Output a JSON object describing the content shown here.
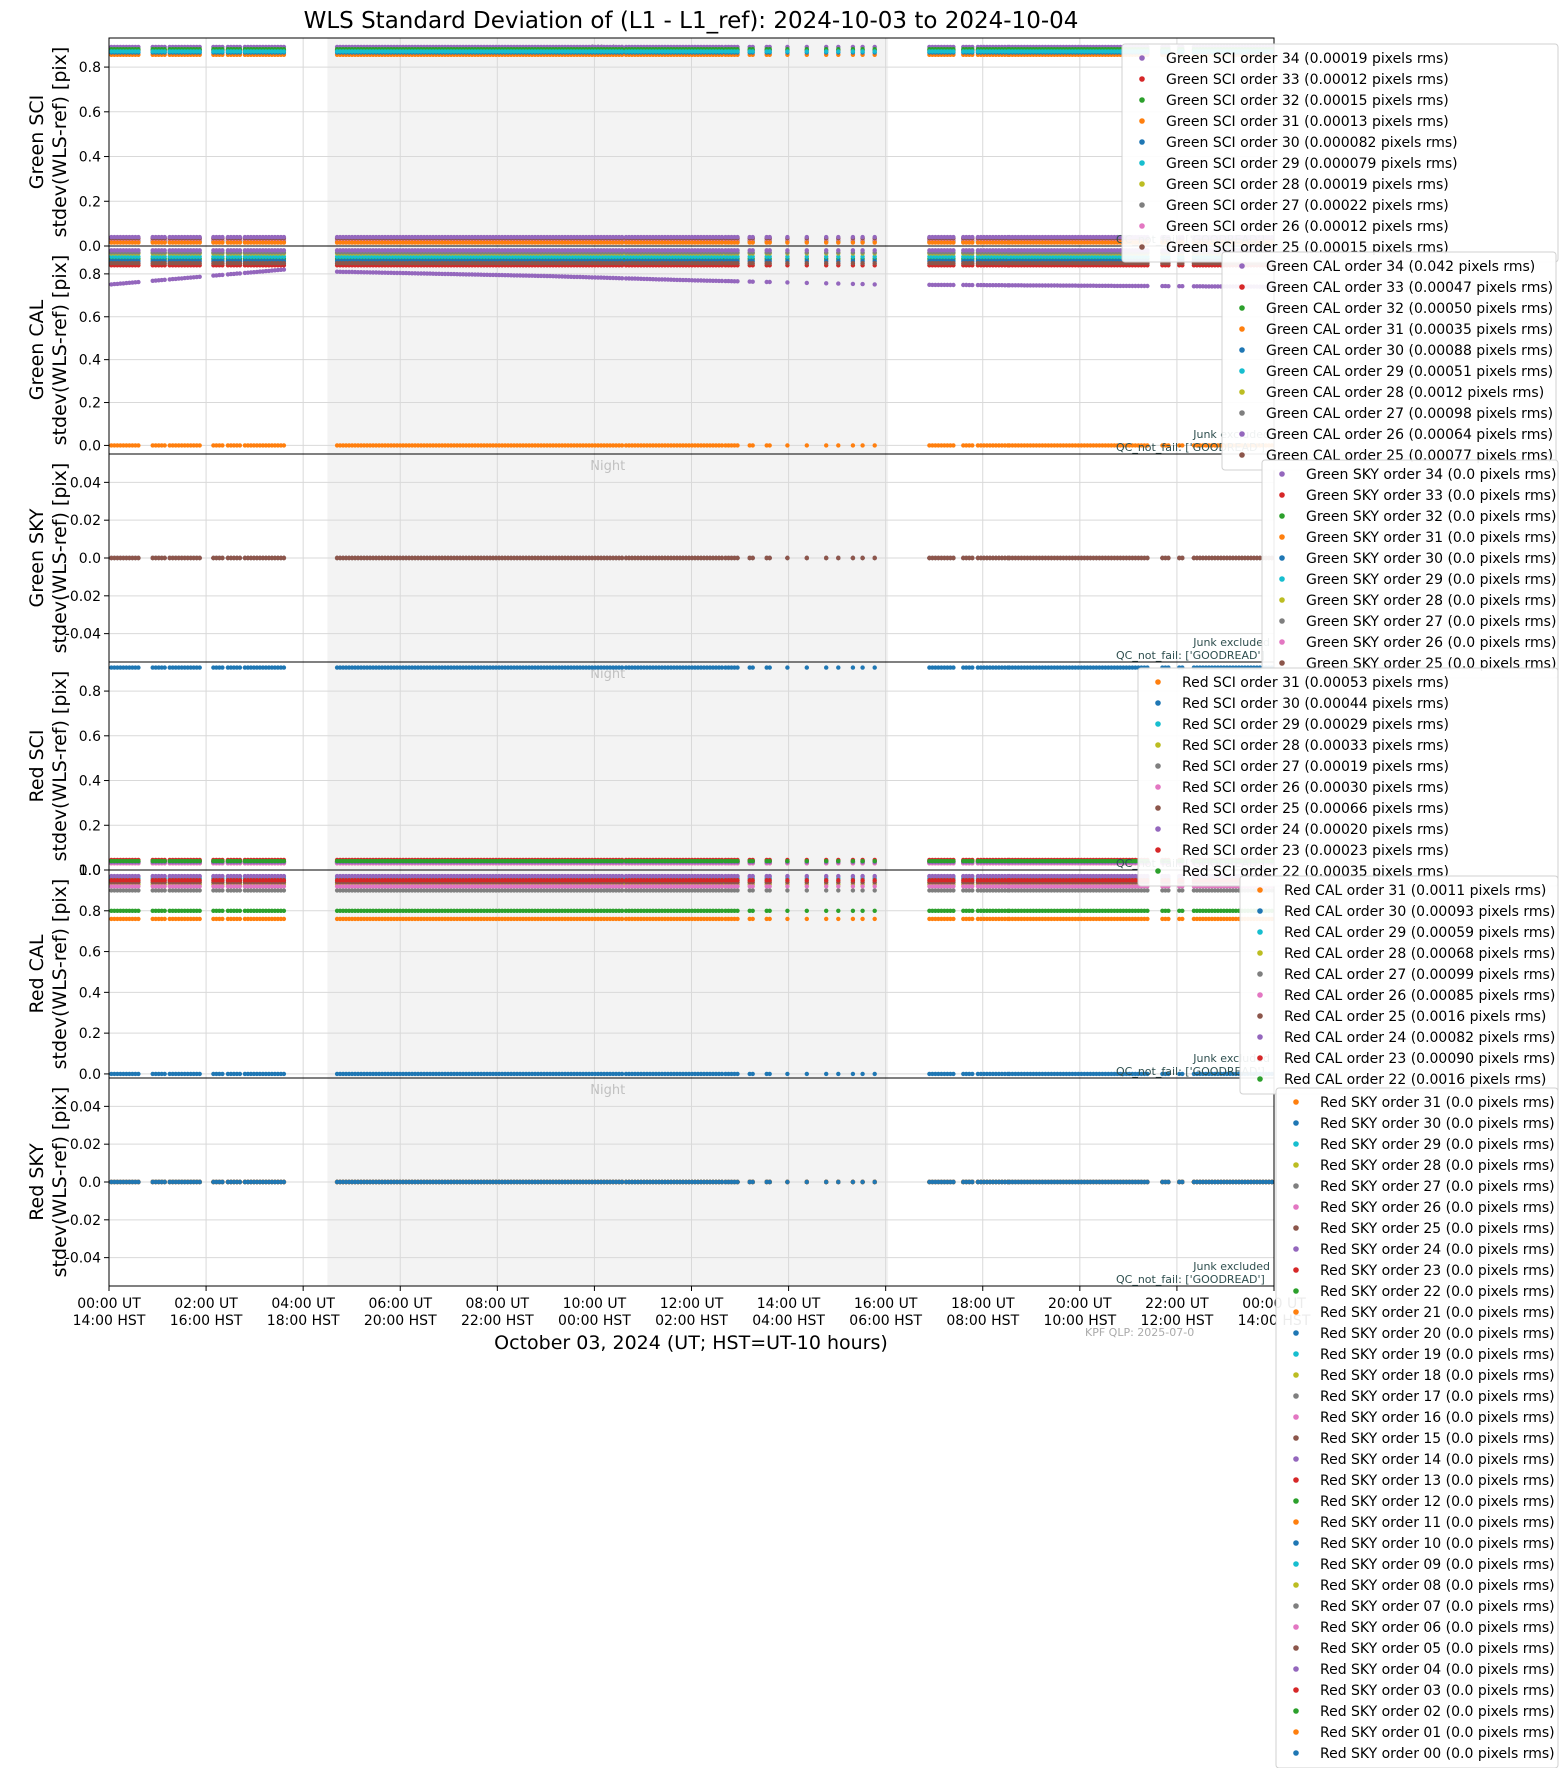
{
  "title": "WLS Standard Deviation of (L1 - L1_ref): 2024-10-03 to 2024-10-04",
  "xlabel": "October 03, 2024 (UT; HST=UT-10 hours)",
  "x_ticks": [
    {
      "ut": "00:00 UT",
      "hst": "14:00 HST"
    },
    {
      "ut": "02:00 UT",
      "hst": "16:00 HST"
    },
    {
      "ut": "04:00 UT",
      "hst": "18:00 HST"
    },
    {
      "ut": "06:00 UT",
      "hst": "20:00 HST"
    },
    {
      "ut": "08:00 UT",
      "hst": "22:00 HST"
    },
    {
      "ut": "10:00 UT",
      "hst": "00:00 HST"
    },
    {
      "ut": "12:00 UT",
      "hst": "02:00 HST"
    },
    {
      "ut": "14:00 UT",
      "hst": "04:00 HST"
    },
    {
      "ut": "16:00 UT",
      "hst": "06:00 HST"
    },
    {
      "ut": "18:00 UT",
      "hst": "08:00 HST"
    },
    {
      "ut": "20:00 UT",
      "hst": "10:00 HST"
    },
    {
      "ut": "22:00 UT",
      "hst": "12:00 HST"
    },
    {
      "ut": "00:00 UT",
      "hst": "14:00 HST"
    }
  ],
  "footer_text": "KPF QLP: 2025-07-0",
  "night_label": "Night",
  "junk_text": "Junk excluded",
  "qc_text": "QC_not_fail: ['GOODREAD']",
  "colors": {
    "palette": [
      "#1f77b4",
      "#ff7f0e",
      "#2ca02c",
      "#d62728",
      "#9467bd",
      "#8c564b",
      "#e377c2",
      "#7f7f7f",
      "#bcbd22",
      "#17becf"
    ],
    "night_band": "#f3f3f3",
    "grid": "#d9d9d9"
  },
  "chart_data": {
    "type": "scatter",
    "x_unit": "hours UT since 2024-10-03 00:00",
    "xlim": [
      0,
      24
    ],
    "night_span": [
      4.5,
      16.05
    ],
    "observation_windows": [
      [
        0.05,
        0.62
      ],
      [
        0.9,
        1.15
      ],
      [
        1.25,
        1.9
      ],
      [
        2.15,
        2.35
      ],
      [
        2.45,
        2.72
      ],
      [
        2.8,
        3.65
      ],
      [
        4.7,
        10.6
      ],
      [
        10.65,
        12.65
      ],
      [
        12.7,
        12.95
      ],
      [
        13.2,
        13.3
      ],
      [
        13.55,
        13.65
      ],
      [
        13.95,
        14.0
      ],
      [
        14.35,
        14.4
      ],
      [
        14.75,
        14.8
      ],
      [
        15.0,
        15.05
      ],
      [
        15.3,
        15.35
      ],
      [
        15.5,
        15.55
      ],
      [
        15.75,
        15.8
      ],
      [
        16.9,
        17.45
      ],
      [
        17.6,
        17.8
      ],
      [
        17.9,
        18.55
      ],
      [
        18.55,
        21.45
      ],
      [
        21.7,
        21.85
      ],
      [
        22.05,
        22.15
      ],
      [
        22.35,
        24.0
      ]
    ],
    "panels": [
      {
        "ylabel_top": "Green SCI",
        "ylabel_bottom": "stdev(WLS-ref) [pix]",
        "ylim": [
          0,
          0.93
        ],
        "yticks": [
          0.0,
          0.2,
          0.4,
          0.6,
          0.8
        ],
        "series": [
          {
            "name": "Green SCI order 34 (0.00019 pixels rms)",
            "color": "#9467bd",
            "value": 0.89
          },
          {
            "name": "Green SCI order 33 (0.00012 pixels rms)",
            "color": "#d62728",
            "value": 0.875
          },
          {
            "name": "Green SCI order 32 (0.00015 pixels rms)",
            "color": "#2ca02c",
            "value": 0.88
          },
          {
            "name": "Green SCI order 31 (0.00013 pixels rms)",
            "color": "#ff7f0e",
            "value": 0.855
          },
          {
            "name": "Green SCI order 30 (0.000082 pixels rms)",
            "color": "#1f77b4",
            "value": 0.865
          },
          {
            "name": "Green SCI order 29 (0.000079 pixels rms)",
            "color": "#17becf",
            "value": 0.87
          },
          {
            "name": "Green SCI order 28 (0.00019 pixels rms)",
            "color": "#bcbd22",
            "value": 0.02
          },
          {
            "name": "Green SCI order 27 (0.00022 pixels rms)",
            "color": "#7f7f7f",
            "value": 0.025
          },
          {
            "name": "Green SCI order 26 (0.00012 pixels rms)",
            "color": "#e377c2",
            "value": 0.03
          },
          {
            "name": "Green SCI order 25 (0.00015 pixels rms)",
            "color": "#8c564b",
            "value": 0.035
          }
        ],
        "extra_values": [
          {
            "color": "#9467bd",
            "value": 0.04
          },
          {
            "color": "#ff7f0e",
            "value": 0.015
          }
        ],
        "show_junk": false
      },
      {
        "ylabel_top": "Green CAL",
        "ylabel_bottom": "stdev(WLS-ref) [pix]",
        "ylim": [
          -0.04,
          0.93
        ],
        "yticks": [
          0.0,
          0.2,
          0.4,
          0.6,
          0.8
        ],
        "series": [
          {
            "name": "Green CAL order 34 (0.042 pixels rms)",
            "color": "#9467bd",
            "value": 0.8,
            "trend": [
              [
                0,
                0.75
              ],
              [
                3.6,
                0.82
              ],
              [
                4.7,
                0.81
              ],
              [
                9,
                0.79
              ],
              [
                12,
                0.77
              ],
              [
                16,
                0.75
              ],
              [
                24,
                0.74
              ]
            ]
          },
          {
            "name": "Green CAL order 33 (0.00047 pixels rms)",
            "color": "#d62728",
            "value": 0.84
          },
          {
            "name": "Green CAL order 32 (0.00050 pixels rms)",
            "color": "#2ca02c",
            "value": 0.87
          },
          {
            "name": "Green CAL order 31 (0.00035 pixels rms)",
            "color": "#ff7f0e",
            "value": 0.0
          },
          {
            "name": "Green CAL order 30 (0.00088 pixels rms)",
            "color": "#1f77b4",
            "value": 0.86
          },
          {
            "name": "Green CAL order 29 (0.00051 pixels rms)",
            "color": "#17becf",
            "value": 0.88
          },
          {
            "name": "Green CAL order 28 (0.0012 pixels rms)",
            "color": "#bcbd22",
            "value": 0.895
          },
          {
            "name": "Green CAL order 27 (0.00098 pixels rms)",
            "color": "#7f7f7f",
            "value": 0.9
          },
          {
            "name": "Green CAL order 26 (0.00064 pixels rms)",
            "color": "#9467bd",
            "value": 0.91
          },
          {
            "name": "Green CAL order 25 (0.00077 pixels rms)",
            "color": "#8c564b",
            "value": 0.85
          }
        ],
        "show_junk": true
      },
      {
        "ylabel_top": "Green SKY",
        "ylabel_bottom": "stdev(WLS-ref) [pix]",
        "ylim": [
          -0.055,
          0.055
        ],
        "yticks": [
          -0.04,
          -0.02,
          0.0,
          0.02,
          0.04
        ],
        "series": [
          {
            "name": "Green SKY order 34 (0.0 pixels rms)",
            "color": "#9467bd",
            "value": 0.0
          },
          {
            "name": "Green SKY order 33 (0.0 pixels rms)",
            "color": "#d62728",
            "value": 0.0
          },
          {
            "name": "Green SKY order 32 (0.0 pixels rms)",
            "color": "#2ca02c",
            "value": 0.0
          },
          {
            "name": "Green SKY order 31 (0.0 pixels rms)",
            "color": "#ff7f0e",
            "value": 0.0
          },
          {
            "name": "Green SKY order 30 (0.0 pixels rms)",
            "color": "#1f77b4",
            "value": 0.0
          },
          {
            "name": "Green SKY order 29 (0.0 pixels rms)",
            "color": "#17becf",
            "value": 0.0
          },
          {
            "name": "Green SKY order 28 (0.0 pixels rms)",
            "color": "#bcbd22",
            "value": 0.0
          },
          {
            "name": "Green SKY order 27 (0.0 pixels rms)",
            "color": "#7f7f7f",
            "value": 0.0
          },
          {
            "name": "Green SKY order 26 (0.0 pixels rms)",
            "color": "#e377c2",
            "value": 0.0
          },
          {
            "name": "Green SKY order 25 (0.0 pixels rms)",
            "color": "#8c564b",
            "value": 0.0
          }
        ],
        "show_junk": true
      },
      {
        "ylabel_top": "Red SCI",
        "ylabel_bottom": "stdev(WLS-ref) [pix]",
        "ylim": [
          0,
          0.93
        ],
        "yticks": [
          0.0,
          0.2,
          0.4,
          0.6,
          0.8
        ],
        "series": [
          {
            "name": "Red SCI order 31 (0.00053 pixels rms)",
            "color": "#ff7f0e",
            "value": 0.03
          },
          {
            "name": "Red SCI order 30 (0.00044 pixels rms)",
            "color": "#1f77b4",
            "value": 0.905
          },
          {
            "name": "Red SCI order 29 (0.00029 pixels rms)",
            "color": "#17becf",
            "value": 0.035
          },
          {
            "name": "Red SCI order 28 (0.00033 pixels rms)",
            "color": "#bcbd22",
            "value": 0.04
          },
          {
            "name": "Red SCI order 27 (0.00019 pixels rms)",
            "color": "#7f7f7f",
            "value": 0.035
          },
          {
            "name": "Red SCI order 26 (0.00030 pixels rms)",
            "color": "#e377c2",
            "value": 0.03
          },
          {
            "name": "Red SCI order 25 (0.00066 pixels rms)",
            "color": "#8c564b",
            "value": 0.04
          },
          {
            "name": "Red SCI order 24 (0.00020 pixels rms)",
            "color": "#9467bd",
            "value": 0.035
          },
          {
            "name": "Red SCI order 23 (0.00023 pixels rms)",
            "color": "#d62728",
            "value": 0.045
          },
          {
            "name": "Red SCI order 22 (0.00035 pixels rms)",
            "color": "#2ca02c",
            "value": 0.04
          }
        ],
        "show_junk": false
      },
      {
        "ylabel_top": "Red CAL",
        "ylabel_bottom": "stdev(WLS-ref) [pix]",
        "ylim": [
          -0.02,
          1.0
        ],
        "yticks": [
          0.0,
          0.2,
          0.4,
          0.6,
          0.8,
          1.0
        ],
        "series": [
          {
            "name": "Red CAL order 31 (0.0011 pixels rms)",
            "color": "#ff7f0e",
            "value": 0.76
          },
          {
            "name": "Red CAL order 30 (0.00093 pixels rms)",
            "color": "#1f77b4",
            "value": 0.0
          },
          {
            "name": "Red CAL order 29 (0.00059 pixels rms)",
            "color": "#17becf",
            "value": 0.96
          },
          {
            "name": "Red CAL order 28 (0.00068 pixels rms)",
            "color": "#bcbd22",
            "value": 0.93
          },
          {
            "name": "Red CAL order 27 (0.00099 pixels rms)",
            "color": "#7f7f7f",
            "value": 0.9
          },
          {
            "name": "Red CAL order 26 (0.00085 pixels rms)",
            "color": "#e377c2",
            "value": 0.92
          },
          {
            "name": "Red CAL order 25 (0.0016 pixels rms)",
            "color": "#8c564b",
            "value": 0.94
          },
          {
            "name": "Red CAL order 24 (0.00082 pixels rms)",
            "color": "#9467bd",
            "value": 0.97
          },
          {
            "name": "Red CAL order 23 (0.00090 pixels rms)",
            "color": "#d62728",
            "value": 0.95
          },
          {
            "name": "Red CAL order 22 (0.0016 pixels rms)",
            "color": "#2ca02c",
            "value": 0.8
          }
        ],
        "show_junk": true
      },
      {
        "ylabel_top": "Red SKY",
        "ylabel_bottom": "stdev(WLS-ref) [pix]",
        "ylim": [
          -0.055,
          0.055
        ],
        "yticks": [
          -0.04,
          -0.02,
          0.0,
          0.02,
          0.04
        ],
        "series": [
          {
            "name": "Red SKY order 31 (0.0 pixels rms)",
            "color": "#ff7f0e",
            "value": 0.0
          },
          {
            "name": "Red SKY order 30 (0.0 pixels rms)",
            "color": "#1f77b4",
            "value": 0.0
          },
          {
            "name": "Red SKY order 29 (0.0 pixels rms)",
            "color": "#17becf",
            "value": 0.0
          },
          {
            "name": "Red SKY order 28 (0.0 pixels rms)",
            "color": "#bcbd22",
            "value": 0.0
          },
          {
            "name": "Red SKY order 27 (0.0 pixels rms)",
            "color": "#7f7f7f",
            "value": 0.0
          },
          {
            "name": "Red SKY order 26 (0.0 pixels rms)",
            "color": "#e377c2",
            "value": 0.0
          },
          {
            "name": "Red SKY order 25 (0.0 pixels rms)",
            "color": "#8c564b",
            "value": 0.0
          },
          {
            "name": "Red SKY order 24 (0.0 pixels rms)",
            "color": "#9467bd",
            "value": 0.0
          },
          {
            "name": "Red SKY order 23 (0.0 pixels rms)",
            "color": "#d62728",
            "value": 0.0
          },
          {
            "name": "Red SKY order 22 (0.0 pixels rms)",
            "color": "#2ca02c",
            "value": 0.0
          },
          {
            "name": "Red SKY order 21 (0.0 pixels rms)",
            "color": "#ff7f0e",
            "value": 0.0
          },
          {
            "name": "Red SKY order 20 (0.0 pixels rms)",
            "color": "#1f77b4",
            "value": 0.0
          },
          {
            "name": "Red SKY order 19 (0.0 pixels rms)",
            "color": "#17becf",
            "value": 0.0
          },
          {
            "name": "Red SKY order 18 (0.0 pixels rms)",
            "color": "#bcbd22",
            "value": 0.0
          },
          {
            "name": "Red SKY order 17 (0.0 pixels rms)",
            "color": "#7f7f7f",
            "value": 0.0
          },
          {
            "name": "Red SKY order 16 (0.0 pixels rms)",
            "color": "#e377c2",
            "value": 0.0
          },
          {
            "name": "Red SKY order 15 (0.0 pixels rms)",
            "color": "#8c564b",
            "value": 0.0
          },
          {
            "name": "Red SKY order 14 (0.0 pixels rms)",
            "color": "#9467bd",
            "value": 0.0
          },
          {
            "name": "Red SKY order 13 (0.0 pixels rms)",
            "color": "#d62728",
            "value": 0.0
          },
          {
            "name": "Red SKY order 12 (0.0 pixels rms)",
            "color": "#2ca02c",
            "value": 0.0
          },
          {
            "name": "Red SKY order 11 (0.0 pixels rms)",
            "color": "#ff7f0e",
            "value": 0.0
          },
          {
            "name": "Red SKY order 10 (0.0 pixels rms)",
            "color": "#1f77b4",
            "value": 0.0
          },
          {
            "name": "Red SKY order 09 (0.0 pixels rms)",
            "color": "#17becf",
            "value": 0.0
          },
          {
            "name": "Red SKY order 08 (0.0 pixels rms)",
            "color": "#bcbd22",
            "value": 0.0
          },
          {
            "name": "Red SKY order 07 (0.0 pixels rms)",
            "color": "#7f7f7f",
            "value": 0.0
          },
          {
            "name": "Red SKY order 06 (0.0 pixels rms)",
            "color": "#e377c2",
            "value": 0.0
          },
          {
            "name": "Red SKY order 05 (0.0 pixels rms)",
            "color": "#8c564b",
            "value": 0.0
          },
          {
            "name": "Red SKY order 04 (0.0 pixels rms)",
            "color": "#9467bd",
            "value": 0.0
          },
          {
            "name": "Red SKY order 03 (0.0 pixels rms)",
            "color": "#d62728",
            "value": 0.0
          },
          {
            "name": "Red SKY order 02 (0.0 pixels rms)",
            "color": "#2ca02c",
            "value": 0.0
          },
          {
            "name": "Red SKY order 01 (0.0 pixels rms)",
            "color": "#ff7f0e",
            "value": 0.0
          },
          {
            "name": "Red SKY order 00 (0.0 pixels rms)",
            "color": "#1f77b4",
            "value": 0.0
          }
        ],
        "show_junk": true
      }
    ]
  }
}
